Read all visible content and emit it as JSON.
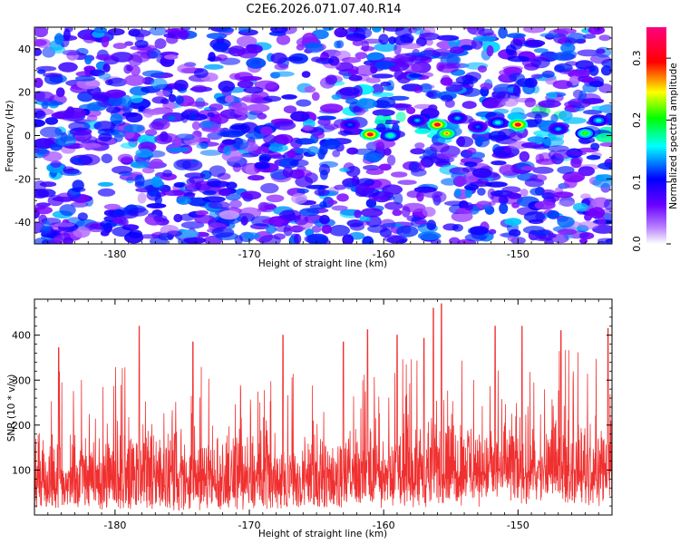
{
  "title": "C2E6.2026.071.07.40.R14",
  "chart_data": [
    {
      "type": "heatmap",
      "xlabel": "Height of straight line (km)",
      "ylabel": "Frequency (Hz)",
      "xlim": [
        -186,
        -143
      ],
      "ylim": [
        -50,
        50
      ],
      "xticks": [
        -180,
        -170,
        -160,
        -150
      ],
      "xtick_labels": [
        "-180",
        "-170",
        "-160",
        "-150"
      ],
      "yticks": [
        -40,
        -20,
        0,
        20,
        40
      ],
      "ytick_labels": [
        "-40",
        "-20",
        "0",
        "20",
        "40"
      ],
      "colorbar": {
        "label": "Normalized spectral amplitude",
        "range": [
          0.0,
          0.35
        ],
        "ticks": [
          0.0,
          0.1,
          0.2,
          0.3
        ],
        "tick_labels": [
          "0.0",
          "0.1",
          "0.2",
          "0.3"
        ]
      },
      "hotspots": [
        {
          "x": -161,
          "y": 0.5,
          "value": 0.34
        },
        {
          "x": -159.5,
          "y": 0,
          "value": 0.18
        },
        {
          "x": -156,
          "y": 5,
          "value": 0.34
        },
        {
          "x": -155.3,
          "y": 1,
          "value": 0.28
        },
        {
          "x": -154.5,
          "y": 8,
          "value": 0.14
        },
        {
          "x": -150,
          "y": 5,
          "value": 0.34
        },
        {
          "x": -151.5,
          "y": 6,
          "value": 0.16
        },
        {
          "x": -153,
          "y": 4,
          "value": 0.12
        },
        {
          "x": -147,
          "y": 3,
          "value": 0.14
        },
        {
          "x": -145,
          "y": 1,
          "value": 0.22
        },
        {
          "x": -144,
          "y": 7,
          "value": 0.16
        },
        {
          "x": -157.5,
          "y": 7,
          "value": 0.14
        },
        {
          "x": -162.5,
          "y": 5,
          "value": 0.12
        }
      ],
      "colors": {
        "ramp": [
          "#ffffff",
          "#7a00ff",
          "#0000ff",
          "#00ffff",
          "#00ff00",
          "#ffff00",
          "#ff0000",
          "#ff0080"
        ]
      }
    },
    {
      "type": "line",
      "xlabel": "Height of straight line (km)",
      "ylabel": "SNR (10 * v/v)",
      "xlim": [
        -186,
        -143
      ],
      "ylim": [
        0,
        480
      ],
      "xticks": [
        -180,
        -170,
        -160,
        -150
      ],
      "xtick_labels": [
        "-180",
        "-170",
        "-160",
        "-150"
      ],
      "yticks": [
        100,
        200,
        300,
        400
      ],
      "ytick_labels": [
        "100",
        "200",
        "300",
        "400"
      ],
      "series": [
        {
          "name": "SNR",
          "color": "#f03030",
          "samples_per_km": 25,
          "baseline_mean": 125,
          "noise_range": [
            15,
            265
          ],
          "peaks": [
            {
              "x": -184.2,
              "y": 372
            },
            {
              "x": -178.2,
              "y": 420
            },
            {
              "x": -174.2,
              "y": 385
            },
            {
              "x": -167.5,
              "y": 400
            },
            {
              "x": -163.0,
              "y": 385
            },
            {
              "x": -161.2,
              "y": 412
            },
            {
              "x": -159.0,
              "y": 400
            },
            {
              "x": -157.0,
              "y": 393
            },
            {
              "x": -156.3,
              "y": 460
            },
            {
              "x": -155.7,
              "y": 470
            },
            {
              "x": -151.7,
              "y": 420
            },
            {
              "x": -149.7,
              "y": 420
            },
            {
              "x": -146.8,
              "y": 410
            },
            {
              "x": -143.3,
              "y": 415
            }
          ]
        }
      ]
    }
  ]
}
